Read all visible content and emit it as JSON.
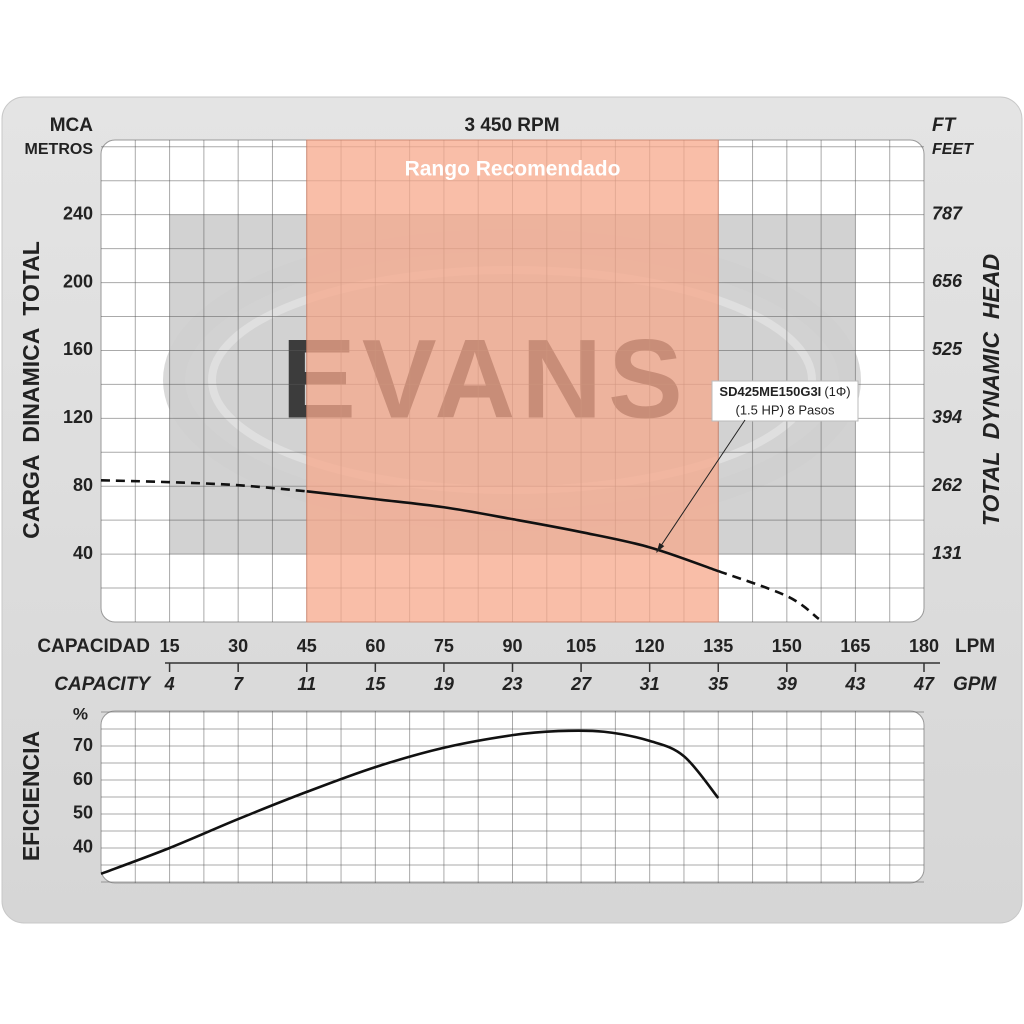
{
  "chart_data": [
    {
      "type": "line",
      "title": "3 450 RPM",
      "y_unit": "MCA",
      "y_unit_sub": "METROS",
      "y2_unit": "FT",
      "y2_unit_sub": "FEET",
      "ylabel": "CARGA  DINAMICA  TOTAL",
      "y2label": "TOTAL  DYNAMIC  HEAD",
      "xlabel": "CAPACIDAD",
      "x_unit": "LPM",
      "x2label": "CAPACITY",
      "x2_unit": "GPM",
      "xlim": [
        0,
        180
      ],
      "xticks": [
        15,
        30,
        45,
        60,
        75,
        90,
        105,
        120,
        135,
        150,
        165,
        180
      ],
      "x2ticks": [
        {
          "value": 15,
          "label": "4"
        },
        {
          "value": 30,
          "label": "7"
        },
        {
          "value": 45,
          "label": "11"
        },
        {
          "value": 60,
          "label": "15"
        },
        {
          "value": 75,
          "label": "19"
        },
        {
          "value": 90,
          "label": "23"
        },
        {
          "value": 105,
          "label": "27"
        },
        {
          "value": 120,
          "label": "31"
        },
        {
          "value": 135,
          "label": "35"
        },
        {
          "value": 150,
          "label": "39"
        },
        {
          "value": 165,
          "label": "43"
        },
        {
          "value": 180,
          "label": "47"
        }
      ],
      "ylim": [
        0,
        284
      ],
      "yticks": [
        40,
        80,
        120,
        160,
        200,
        240
      ],
      "y2lim": [
        0,
        931
      ],
      "y2ticks": [
        131,
        262,
        394,
        525,
        656,
        787
      ],
      "grid": {
        "x_step": 7.5,
        "y_step": 20
      },
      "recommended_range": {
        "label": "Rango Recomendado",
        "x": [
          45,
          135
        ],
        "color": "#f7a98c"
      },
      "operating_area": {
        "x": [
          15,
          165
        ],
        "y": [
          40,
          240
        ],
        "color": "#d2d2d2"
      },
      "watermark": "EVANS",
      "series": [
        {
          "x": [
            0,
            15,
            30,
            45
          ],
          "values": [
            83.5,
            82.4,
            80.6,
            77
          ],
          "dashed": true,
          "color": "#111"
        },
        {
          "x": [
            45,
            60,
            75,
            90,
            105,
            120,
            135
          ],
          "values": [
            77,
            72.4,
            67.6,
            60.6,
            53,
            44,
            30
          ],
          "dashed": false,
          "color": "#111"
        },
        {
          "x": [
            135,
            150,
            157
          ],
          "values": [
            30,
            15.3,
            1.8
          ],
          "dashed": true,
          "color": "#111"
        }
      ],
      "annotation": {
        "model": "SD425ME150G3I",
        "phase": "(1Φ)",
        "text": "(1.5 HP) 8 Pasos",
        "x": 121.5,
        "y": 41
      }
    },
    {
      "type": "line",
      "ylabel": "EFICIENCIA",
      "y_unit": "%",
      "xlim": [
        0,
        180
      ],
      "ylim": [
        29.7,
        80.3
      ],
      "yticks": [
        40,
        50,
        60,
        70
      ],
      "grid": {
        "x_step": 7.5,
        "y_step": 5
      },
      "series": [
        {
          "x": [
            0,
            15,
            30,
            45,
            60,
            75,
            90,
            100,
            110,
            120,
            127.5,
            135
          ],
          "values": [
            32.4,
            40,
            48.5,
            56.5,
            63.8,
            69.5,
            73.2,
            74.4,
            74.2,
            71.5,
            67,
            54.7
          ],
          "dashed": false,
          "color": "#111"
        }
      ]
    }
  ]
}
